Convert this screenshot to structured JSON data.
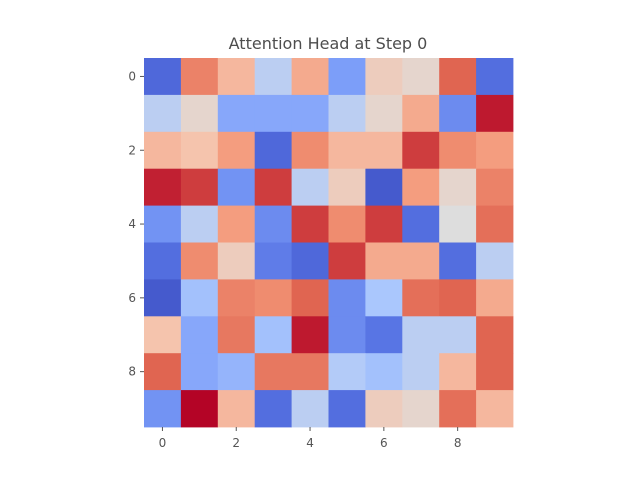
{
  "chart_data": {
    "type": "heatmap",
    "title": "Attention Head at Step 0",
    "xlabel": "",
    "ylabel": "",
    "rows": 10,
    "cols": 10,
    "x_ticks": [
      0,
      2,
      4,
      6,
      8
    ],
    "y_ticks": [
      0,
      2,
      4,
      6,
      8
    ],
    "x_tick_labels": [
      "0",
      "2",
      "4",
      "6",
      "8"
    ],
    "y_tick_labels": [
      "0",
      "2",
      "4",
      "6",
      "8"
    ],
    "colormap": "coolwarm",
    "vrange": [
      0,
      1
    ],
    "grid": false,
    "colorbar": false,
    "values": [
      [
        0.1,
        0.8,
        0.66,
        0.42,
        0.7,
        0.25,
        0.58,
        0.54,
        0.86,
        0.12
      ],
      [
        0.42,
        0.54,
        0.28,
        0.28,
        0.28,
        0.42,
        0.54,
        0.7,
        0.2,
        0.97
      ],
      [
        0.66,
        0.62,
        0.74,
        0.1,
        0.78,
        0.66,
        0.66,
        0.92,
        0.78,
        0.74
      ],
      [
        0.96,
        0.92,
        0.22,
        0.92,
        0.42,
        0.58,
        0.05,
        0.74,
        0.54,
        0.8
      ],
      [
        0.22,
        0.42,
        0.74,
        0.2,
        0.92,
        0.78,
        0.92,
        0.12,
        0.5,
        0.84
      ],
      [
        0.12,
        0.78,
        0.58,
        0.16,
        0.1,
        0.92,
        0.7,
        0.7,
        0.12,
        0.42
      ],
      [
        0.05,
        0.36,
        0.8,
        0.78,
        0.86,
        0.2,
        0.38,
        0.84,
        0.86,
        0.7
      ],
      [
        0.62,
        0.28,
        0.82,
        0.36,
        0.97,
        0.2,
        0.14,
        0.42,
        0.42,
        0.86
      ],
      [
        0.86,
        0.28,
        0.32,
        0.82,
        0.82,
        0.4,
        0.36,
        0.42,
        0.66,
        0.86
      ],
      [
        0.22,
        1.0,
        0.66,
        0.12,
        0.42,
        0.12,
        0.58,
        0.54,
        0.84,
        0.66
      ]
    ]
  }
}
